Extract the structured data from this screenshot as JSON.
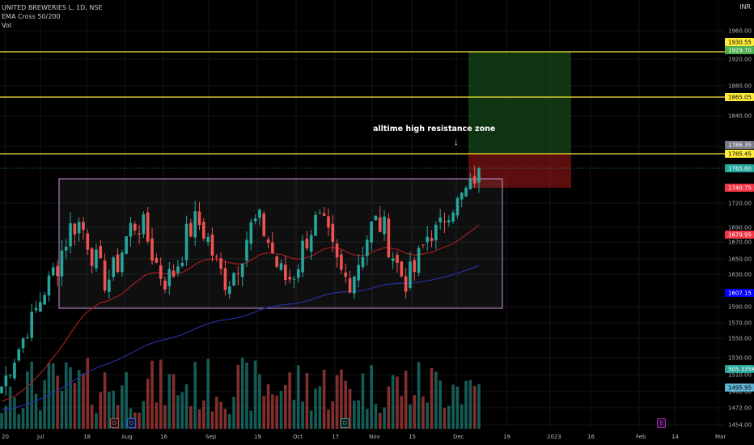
{
  "legend": {
    "symbol": "UNITED BREWERIES L, 1D, NSE",
    "indicator": "EMA Cross 50/200",
    "volume": "Vol"
  },
  "currency": "INR",
  "annotation": "alltime high resistance zone",
  "annotation_arrow": "↓",
  "events": [
    {
      "label": "D",
      "color": "#c24e4e"
    },
    {
      "label": "D",
      "color": "#2962ff"
    },
    {
      "label": "D",
      "color": "#26a69a"
    },
    {
      "label": "E",
      "color": "#9c27b0"
    }
  ],
  "price_scale": {
    "ticks": [
      "1960.00",
      "1920.00",
      "1880.00",
      "1840.00",
      "1800.00",
      "1720.00",
      "1690.00",
      "1670.00",
      "1650.00",
      "1630.00",
      "1590.00",
      "1570.00",
      "1550.00",
      "1530.00",
      "1510.00",
      "1490.00",
      "1472.00",
      "1454.00"
    ],
    "badges": [
      {
        "label": "1930.55",
        "bg": "#ffeb3b",
        "fg": "#000000"
      },
      {
        "label": "1929.70",
        "bg": "#4caf50",
        "fg": "#ffffff"
      },
      {
        "label": "1865.05",
        "bg": "#ffeb3b",
        "fg": "#000000"
      },
      {
        "label": "1786.35",
        "bg": "#787b86",
        "fg": "#ffffff"
      },
      {
        "label": "1785.45",
        "bg": "#ffeb3b",
        "fg": "#000000"
      },
      {
        "label": "1765.80",
        "bg": "#26a69a",
        "fg": "#ffffff"
      },
      {
        "label": "1740.75",
        "bg": "#f23645",
        "fg": "#ffffff"
      },
      {
        "label": "1679.95",
        "bg": "#f23645",
        "fg": "#ffffff"
      },
      {
        "label": "1607.15",
        "bg": "#0000ff",
        "fg": "#ffffff"
      },
      {
        "label": "505.335K",
        "bg": "#26a69a",
        "fg": "#ffffff"
      },
      {
        "label": "1495.95",
        "bg": "#5fb3d4",
        "fg": "#000000"
      }
    ]
  },
  "time_axis": [
    "20",
    "Jul",
    "18",
    "Aug",
    "16",
    "Sep",
    "19",
    "Oct",
    "17",
    "Nov",
    "15",
    "Dec",
    "19",
    "2023",
    "16",
    "Feb",
    "14",
    "Mar"
  ],
  "chart_data": {
    "type": "candlestick",
    "symbol": "UNITED BREWERIES L",
    "interval": "1D",
    "exchange": "NSE",
    "horizontal_levels": [
      1930.55,
      1865.05,
      1785.45
    ],
    "range_box": {
      "high": 1750,
      "low": 1590
    },
    "long_position": {
      "entry": 1785.45,
      "target": 1929.7,
      "stop": 1740.75
    },
    "last_price": 1765.8,
    "ema_50_last": 1679.95,
    "ema_200_last": 1607.15,
    "volume_last": "505.335K",
    "colors": {
      "up": "#26a69a",
      "down": "#ef5350",
      "ema50": "#b71c1c",
      "ema200": "#1a237e",
      "levels": "#ffeb3b",
      "box": "#ce93d8"
    }
  }
}
